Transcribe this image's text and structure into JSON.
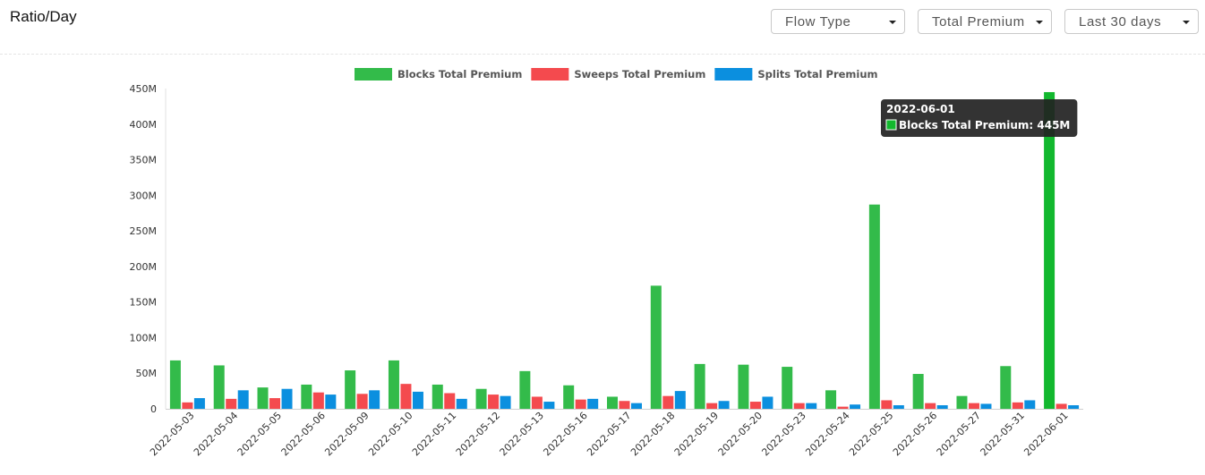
{
  "header": {
    "title": "Ratio/Day",
    "filters": {
      "flow_type": "Flow Type",
      "metric": "Total Premium",
      "range": "Last 30 days"
    }
  },
  "chart_data": {
    "type": "bar",
    "categories": [
      "2022-05-03",
      "2022-05-04",
      "2022-05-05",
      "2022-05-06",
      "2022-05-09",
      "2022-05-10",
      "2022-05-11",
      "2022-05-12",
      "2022-05-13",
      "2022-05-16",
      "2022-05-17",
      "2022-05-18",
      "2022-05-19",
      "2022-05-20",
      "2022-05-23",
      "2022-05-24",
      "2022-05-25",
      "2022-05-26",
      "2022-05-27",
      "2022-05-31",
      "2022-06-01"
    ],
    "series": [
      {
        "name": "Blocks Total Premium",
        "color": "#33bb4a",
        "values": [
          68,
          61,
          30,
          34,
          54,
          68,
          34,
          28,
          53,
          33,
          17,
          173,
          63,
          62,
          59,
          26,
          287,
          49,
          18,
          60,
          445
        ]
      },
      {
        "name": "Sweeps Total Premium",
        "color": "#f44a4e",
        "values": [
          9,
          14,
          15,
          23,
          21,
          35,
          22,
          20,
          17,
          13,
          11,
          18,
          8,
          10,
          8,
          3,
          12,
          8,
          8,
          9,
          7
        ]
      },
      {
        "name": "Splits Total Premium",
        "color": "#0b8fdf",
        "values": [
          15,
          26,
          28,
          20,
          26,
          24,
          14,
          18,
          10,
          14,
          8,
          25,
          11,
          17,
          8,
          6,
          5,
          5,
          7,
          12,
          5
        ]
      }
    ],
    "unit_suffix": "M",
    "yticks": [
      0,
      50,
      100,
      150,
      200,
      250,
      300,
      350,
      400,
      450
    ],
    "ylim": [
      0,
      450
    ],
    "legend_position": "top-center",
    "tooltip": {
      "category": "2022-06-01",
      "label": "Blocks Total Premium: 445M",
      "highlight_color": "#12b82e"
    }
  }
}
